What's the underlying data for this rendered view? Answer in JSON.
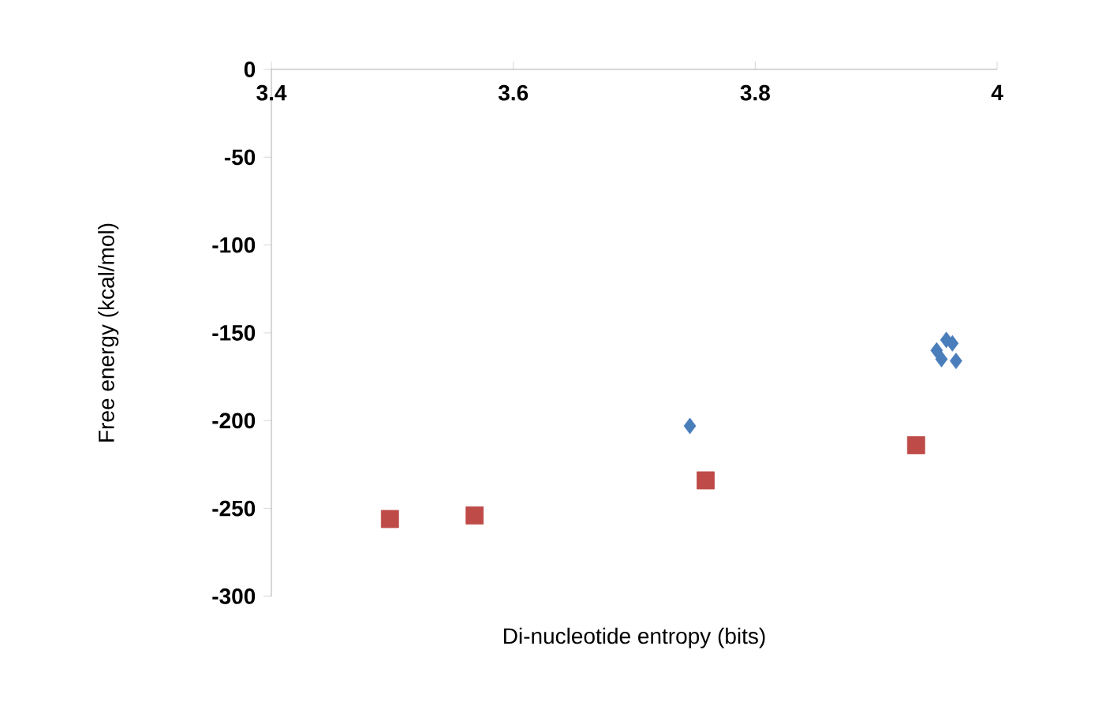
{
  "chart_data": {
    "type": "scatter",
    "xlabel": "Di-nucleotide entropy (bits)",
    "ylabel": "Free energy (kcal/mol)",
    "xlim": [
      3.4,
      4
    ],
    "xticks": [
      3.4,
      3.6,
      3.8,
      4
    ],
    "ylim": [
      -300,
      0
    ],
    "yticks": [
      -300,
      -250,
      -200,
      -150,
      -100,
      -50,
      0
    ],
    "grid": false,
    "series": [
      {
        "color": "#4a7ebb",
        "marker": "diamond",
        "x": [
          3.746,
          3.95,
          3.958,
          3.963,
          3.954,
          3.966
        ],
        "values": [
          -203,
          -160,
          -154,
          -156,
          -165,
          -166
        ]
      },
      {
        "color": "#be4b48",
        "marker": "square",
        "x": [
          3.498,
          3.568,
          3.759,
          3.933
        ],
        "values": [
          -256,
          -254,
          -234,
          -214
        ]
      }
    ]
  }
}
